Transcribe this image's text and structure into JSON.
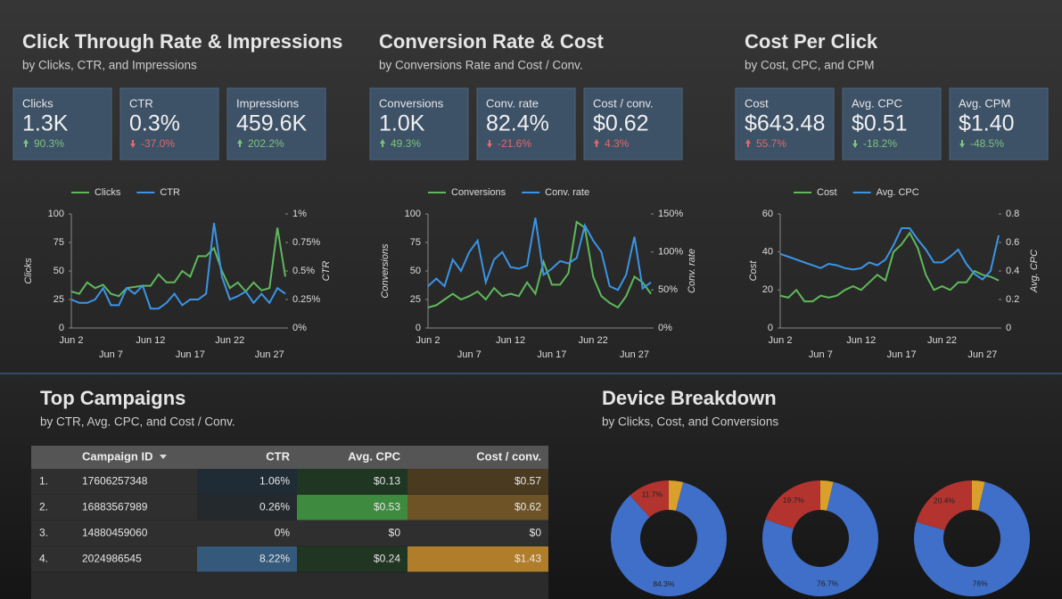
{
  "panels": [
    {
      "title": "Click Through Rate & Impressions",
      "subtitle": "by Clicks, CTR, and Impressions",
      "scorecards": [
        {
          "label": "Clicks",
          "value": "1.3K",
          "change": "90.3%",
          "trend": "up",
          "color": "#7cc47c"
        },
        {
          "label": "CTR",
          "value": "0.3%",
          "change": "-37.0%",
          "trend": "down",
          "color": "#e06a6a"
        },
        {
          "label": "Impressions",
          "value": "459.6K",
          "change": "202.2%",
          "trend": "up",
          "color": "#7cc47c"
        }
      ]
    },
    {
      "title": "Conversion Rate & Cost",
      "subtitle": "by Conversions Rate and Cost / Conv.",
      "scorecards": [
        {
          "label": "Conversions",
          "value": "1.0K",
          "change": "49.3%",
          "trend": "up",
          "color": "#7cc47c"
        },
        {
          "label": "Conv. rate",
          "value": "82.4%",
          "change": "-21.6%",
          "trend": "down",
          "color": "#e06a6a"
        },
        {
          "label": "Cost / conv.",
          "value": "$0.62",
          "change": "4.3%",
          "trend": "up",
          "color": "#e06a6a"
        }
      ]
    },
    {
      "title": "Cost Per Click",
      "subtitle": "by Cost, CPC, and CPM",
      "scorecards": [
        {
          "label": "Cost",
          "value": "$643.48",
          "change": "55.7%",
          "trend": "up",
          "color": "#e06a6a"
        },
        {
          "label": "Avg. CPC",
          "value": "$0.51",
          "change": "-18.2%",
          "trend": "down",
          "color": "#7cc47c"
        },
        {
          "label": "Avg. CPM",
          "value": "$1.40",
          "change": "-48.5%",
          "trend": "down",
          "color": "#7cc47c"
        }
      ]
    }
  ],
  "chart_data": [
    {
      "type": "line",
      "categories": [
        "Jun 2",
        null,
        null,
        null,
        null,
        "Jun 7",
        null,
        null,
        null,
        null,
        "Jun 12",
        null,
        null,
        null,
        null,
        "Jun 17",
        null,
        null,
        null,
        null,
        "Jun 22",
        null,
        null,
        null,
        null,
        "Jun 27",
        null,
        null
      ],
      "series": [
        {
          "name": "Clicks",
          "color": "#5fb85a",
          "values": [
            32,
            30,
            40,
            35,
            38,
            30,
            28,
            35,
            36,
            37,
            37,
            47,
            40,
            40,
            50,
            45,
            63,
            63,
            70,
            50,
            35,
            40,
            32,
            40,
            33,
            35,
            88,
            45
          ]
        },
        {
          "name": "CTR",
          "color": "#3b95e6",
          "axis": "y2",
          "values": [
            0.25,
            0.22,
            0.22,
            0.25,
            0.35,
            0.2,
            0.2,
            0.35,
            0.3,
            0.37,
            0.17,
            0.17,
            0.22,
            0.3,
            0.2,
            0.25,
            0.25,
            0.3,
            0.92,
            0.45,
            0.25,
            0.28,
            0.32,
            0.22,
            0.3,
            0.22,
            0.35,
            0.3
          ]
        }
      ],
      "ylabel": "Clicks",
      "y2label": "CTR",
      "ylim": [
        0,
        100
      ],
      "yticks": [
        0,
        25,
        50,
        75,
        100
      ],
      "y2lim": [
        0,
        1
      ],
      "y2ticks": [
        {
          "value": 0,
          "label": "0%"
        },
        {
          "value": 0.25,
          "label": "0.25%"
        },
        {
          "value": 0.5,
          "label": "0.5%"
        },
        {
          "value": 0.75,
          "label": "0.75%"
        },
        {
          "value": 1,
          "label": "1%"
        }
      ],
      "legend": "top"
    },
    {
      "type": "line",
      "categories": [
        "Jun 2",
        null,
        null,
        null,
        null,
        "Jun 7",
        null,
        null,
        null,
        null,
        "Jun 12",
        null,
        null,
        null,
        null,
        "Jun 17",
        null,
        null,
        null,
        null,
        "Jun 22",
        null,
        null,
        null,
        null,
        "Jun 27",
        null,
        null
      ],
      "series": [
        {
          "name": "Conversions",
          "color": "#5fb85a",
          "values": [
            18,
            20,
            25,
            30,
            25,
            28,
            32,
            25,
            35,
            28,
            30,
            28,
            40,
            30,
            58,
            38,
            38,
            48,
            93,
            88,
            45,
            28,
            22,
            18,
            28,
            45,
            40,
            30
          ]
        },
        {
          "name": "Conv. rate",
          "color": "#3b95e6",
          "axis": "y2",
          "values": [
            55,
            65,
            55,
            90,
            75,
            100,
            115,
            60,
            90,
            100,
            80,
            78,
            82,
            145,
            70,
            78,
            88,
            85,
            92,
            135,
            115,
            100,
            55,
            50,
            70,
            120,
            52,
            60
          ]
        }
      ],
      "ylabel": "Conversions",
      "y2label": "Conv. rate",
      "ylim": [
        0,
        100
      ],
      "yticks": [
        0,
        25,
        50,
        75,
        100
      ],
      "y2lim": [
        0,
        150
      ],
      "y2ticks": [
        {
          "value": 0,
          "label": "0%"
        },
        {
          "value": 50,
          "label": "50%"
        },
        {
          "value": 100,
          "label": "100%"
        },
        {
          "value": 150,
          "label": "150%"
        }
      ],
      "legend": "top"
    },
    {
      "type": "line",
      "categories": [
        "Jun 2",
        null,
        null,
        null,
        null,
        "Jun 7",
        null,
        null,
        null,
        null,
        "Jun 12",
        null,
        null,
        null,
        null,
        "Jun 17",
        null,
        null,
        null,
        null,
        "Jun 22",
        null,
        null,
        null,
        null,
        "Jun 27",
        null,
        null
      ],
      "series": [
        {
          "name": "Cost",
          "color": "#5fb85a",
          "values": [
            17,
            16,
            20,
            14,
            14,
            17,
            16,
            17,
            20,
            22,
            20,
            24,
            28,
            25,
            40,
            44,
            50,
            42,
            28,
            20,
            22,
            20,
            24,
            24,
            30,
            28,
            27,
            25
          ]
        },
        {
          "name": "Avg. CPC",
          "color": "#3b95e6",
          "axis": "y2",
          "values": [
            0.52,
            0.5,
            0.48,
            0.46,
            0.44,
            0.42,
            0.45,
            0.44,
            0.42,
            0.41,
            0.42,
            0.46,
            0.44,
            0.48,
            0.58,
            0.7,
            0.7,
            0.62,
            0.55,
            0.46,
            0.46,
            0.5,
            0.55,
            0.45,
            0.38,
            0.34,
            0.4,
            0.65
          ]
        }
      ],
      "ylabel": "Cost",
      "y2label": "Avg. CPC",
      "ylim": [
        0,
        60
      ],
      "yticks": [
        0,
        20,
        40,
        60
      ],
      "y2lim": [
        0,
        0.8
      ],
      "y2ticks": [
        0,
        0.2,
        0.4,
        0.6,
        0.8
      ],
      "legend": "top"
    },
    {
      "type": "pie",
      "values": [
        4.0,
        84.3,
        11.7
      ],
      "value_labels": [
        null,
        "84.3%",
        "11.7%"
      ],
      "colors": [
        "#d9a12b",
        "#3f6fc9",
        "#b3342f"
      ]
    },
    {
      "type": "pie",
      "values": [
        3.6,
        76.7,
        19.7
      ],
      "value_labels": [
        null,
        "76.7%",
        "19.7%"
      ],
      "colors": [
        "#d9a12b",
        "#3f6fc9",
        "#b3342f"
      ]
    },
    {
      "type": "pie",
      "values": [
        3.6,
        76,
        20.4
      ],
      "value_labels": [
        null,
        "76%",
        "20.4%"
      ],
      "colors": [
        "#d9a12b",
        "#3f6fc9",
        "#b3342f"
      ]
    }
  ],
  "table": {
    "title": "Top Campaigns",
    "subtitle": "by CTR, Avg. CPC, and Cost / Conv.",
    "columns": [
      "Campaign ID",
      "CTR",
      "Avg. CPC",
      "Cost / conv."
    ],
    "rows": [
      [
        "1.",
        "17606257348",
        "1.06%",
        "$0.13",
        "$0.57"
      ],
      [
        "2.",
        "16883567989",
        "0.26%",
        "$0.53",
        "$0.62"
      ],
      [
        "3.",
        "14880459060",
        "0%",
        "$0",
        "$0"
      ],
      [
        "4.",
        "2024986545",
        "8.22%",
        "$0.24",
        "$1.43"
      ]
    ]
  },
  "devices": {
    "title": "Device Breakdown",
    "subtitle": "by Clicks, Cost, and Conversions"
  }
}
